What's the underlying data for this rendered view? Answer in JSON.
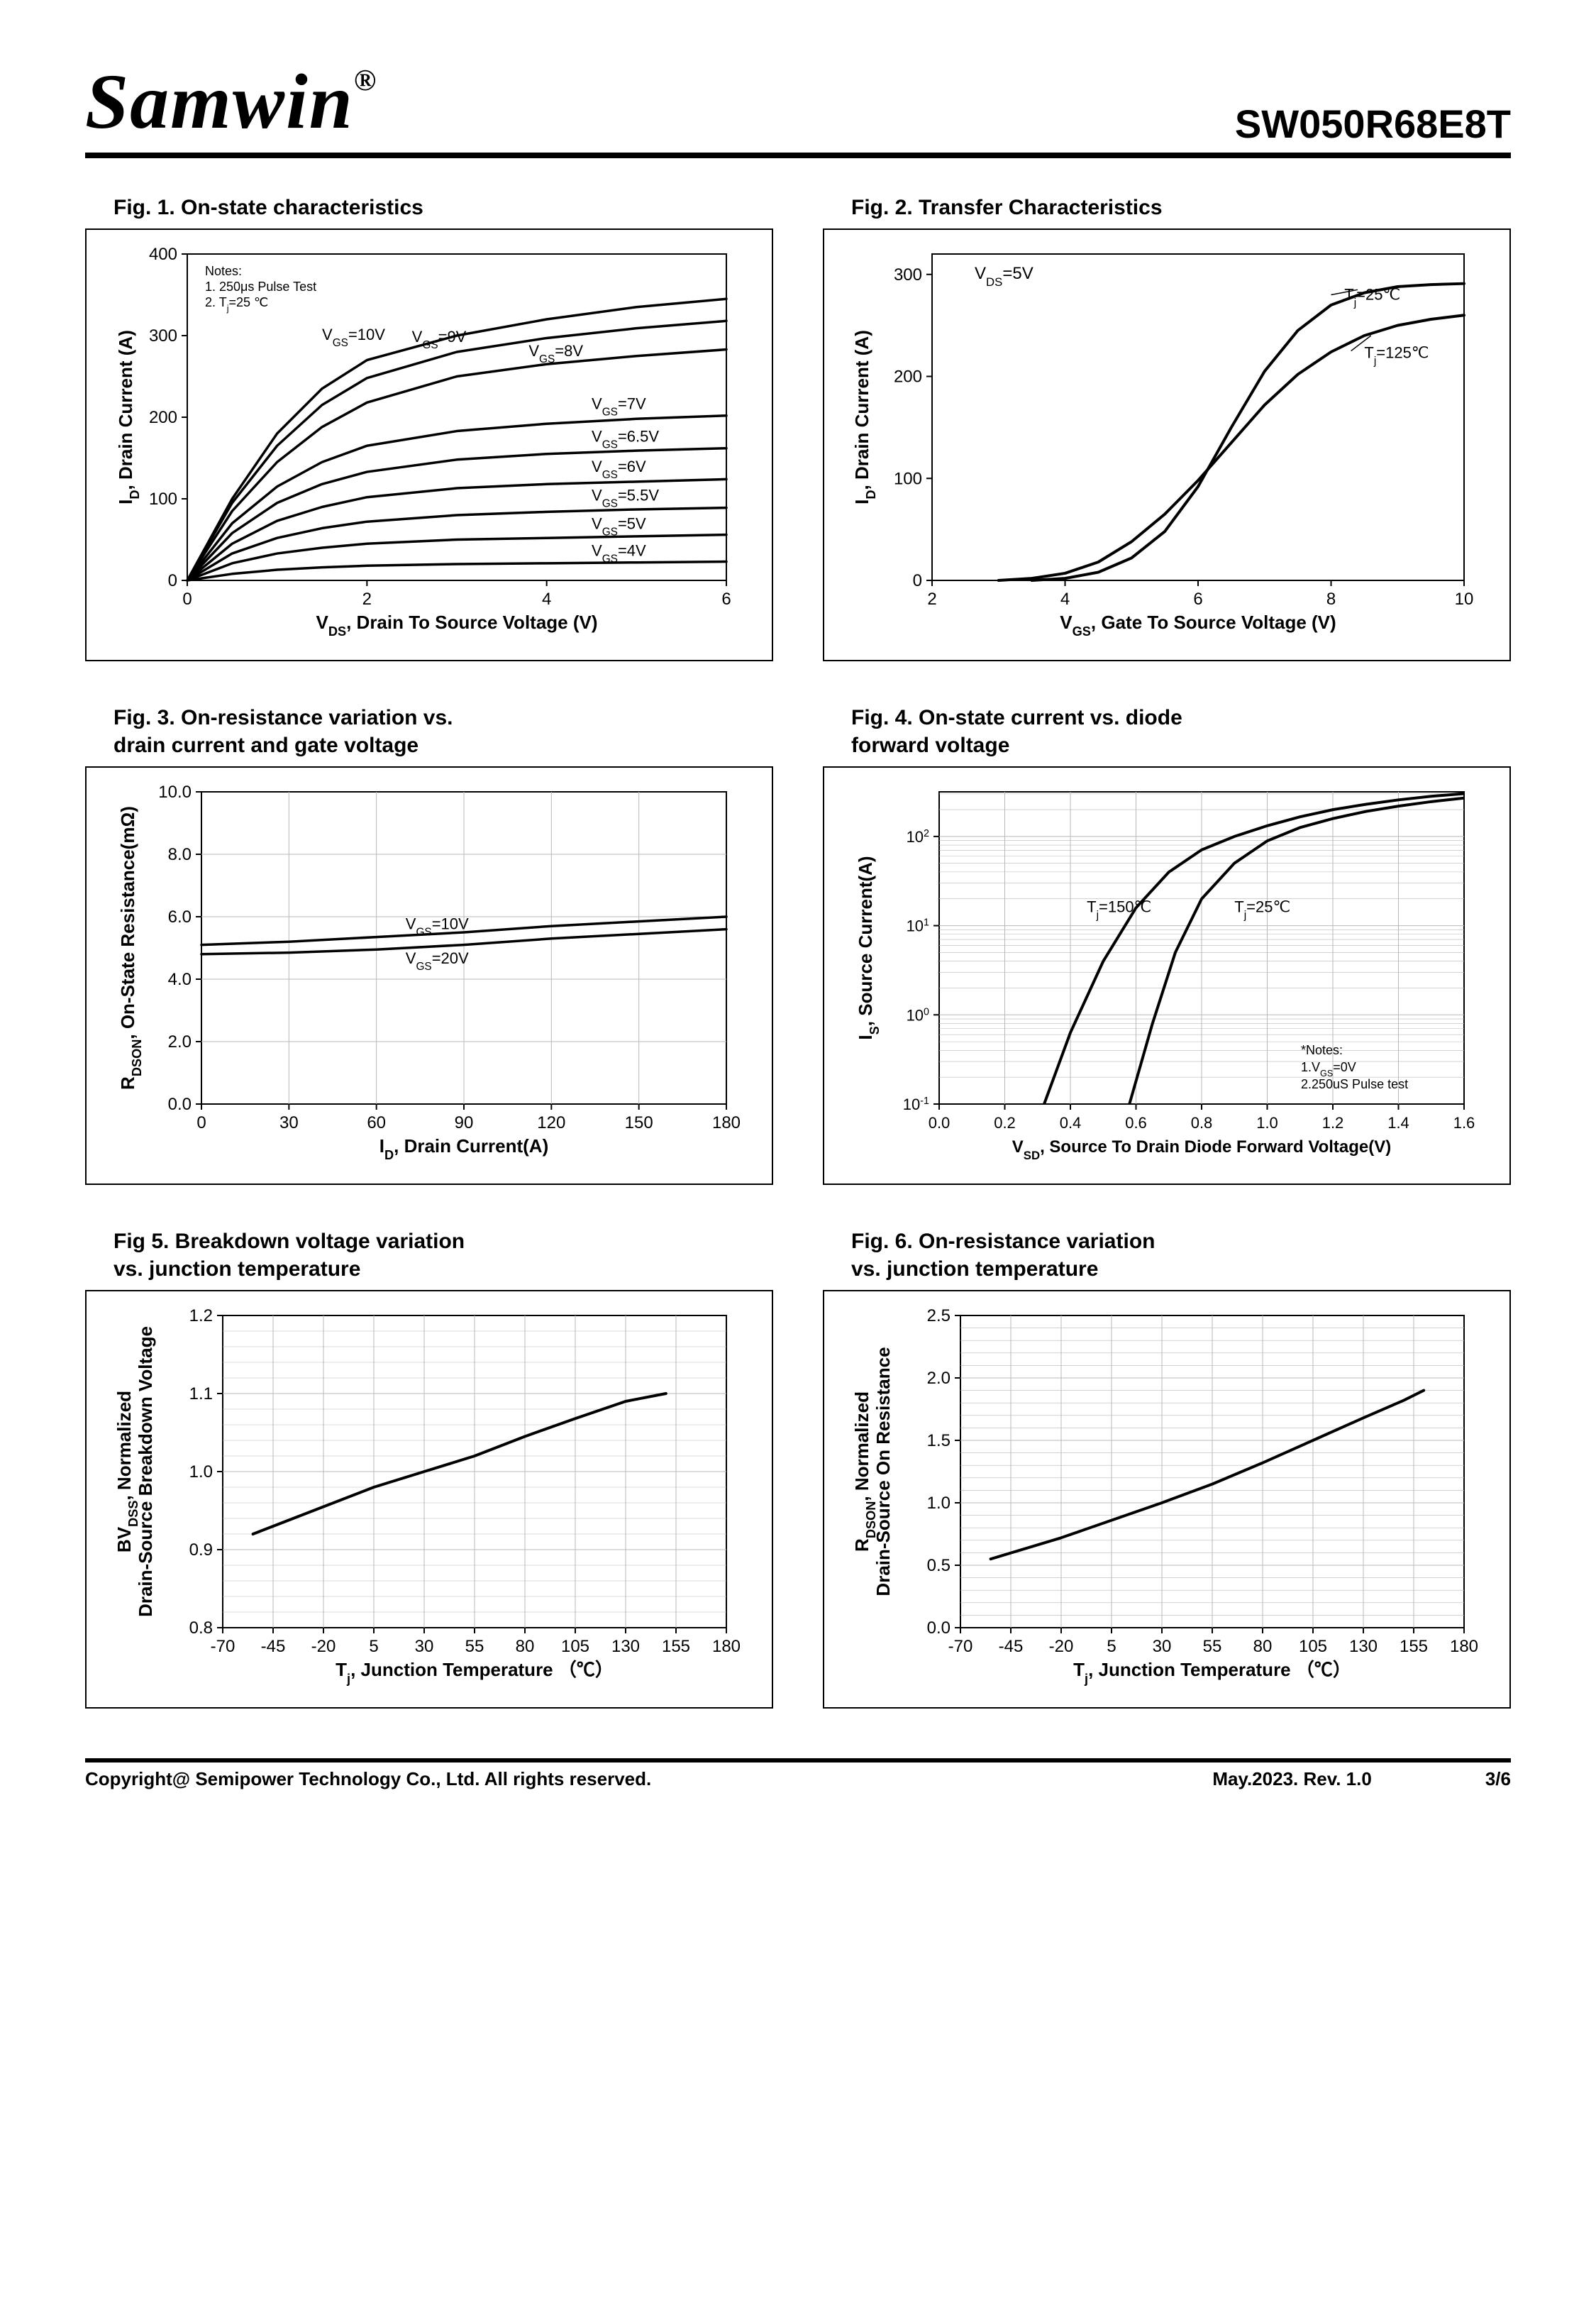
{
  "header": {
    "brand": "Samwin",
    "reg": "®",
    "part": "SW050R68E8T"
  },
  "footer": {
    "copyright": "Copyright@ Semipower Technology Co., Ltd. All rights reserved.",
    "date": "May.2023. Rev. 1.0",
    "page": "3/6"
  },
  "colors": {
    "line": "#000000",
    "grid": "#b8b8b8",
    "bg": "#ffffff",
    "border": "#000000"
  },
  "fig1": {
    "title": "Fig. 1. On-state characteristics",
    "xlabel": "V_DS, Drain To Source Voltage (V)",
    "ylabel": "I_D, Drain Current (A)",
    "xlim": [
      0,
      6
    ],
    "ylim": [
      0,
      400
    ],
    "xticks": [
      0,
      2,
      4,
      6
    ],
    "yticks": [
      0,
      100,
      200,
      300,
      400
    ],
    "notes": [
      "Notes:",
      "1. 250μs  Pulse Test",
      "2. T_j=25 ℃"
    ],
    "series": [
      {
        "label": "V_GS=10V",
        "color": "#000",
        "data": [
          [
            0,
            0
          ],
          [
            0.5,
            100
          ],
          [
            1,
            180
          ],
          [
            1.5,
            235
          ],
          [
            2,
            270
          ],
          [
            3,
            300
          ],
          [
            4,
            320
          ],
          [
            5,
            335
          ],
          [
            6,
            345
          ]
        ],
        "labelpos": [
          1.5,
          295
        ]
      },
      {
        "label": "V_GS=9V",
        "color": "#000",
        "data": [
          [
            0,
            0
          ],
          [
            0.5,
            95
          ],
          [
            1,
            165
          ],
          [
            1.5,
            215
          ],
          [
            2,
            248
          ],
          [
            3,
            280
          ],
          [
            4,
            297
          ],
          [
            5,
            309
          ],
          [
            6,
            318
          ]
        ],
        "labelpos": [
          2.5,
          292
        ]
      },
      {
        "label": "V_GS=8V",
        "color": "#000",
        "data": [
          [
            0,
            0
          ],
          [
            0.5,
            85
          ],
          [
            1,
            145
          ],
          [
            1.5,
            188
          ],
          [
            2,
            218
          ],
          [
            3,
            250
          ],
          [
            4,
            265
          ],
          [
            5,
            275
          ],
          [
            6,
            283
          ]
        ],
        "labelpos": [
          3.8,
          275
        ]
      },
      {
        "label": "V_GS=7V",
        "color": "#000",
        "data": [
          [
            0,
            0
          ],
          [
            0.5,
            70
          ],
          [
            1,
            115
          ],
          [
            1.5,
            145
          ],
          [
            2,
            165
          ],
          [
            3,
            183
          ],
          [
            4,
            192
          ],
          [
            5,
            198
          ],
          [
            6,
            202
          ]
        ],
        "labelpos": [
          4.5,
          210
        ]
      },
      {
        "label": "V_GS=6.5V",
        "color": "#000",
        "data": [
          [
            0,
            0
          ],
          [
            0.5,
            58
          ],
          [
            1,
            95
          ],
          [
            1.5,
            118
          ],
          [
            2,
            133
          ],
          [
            3,
            148
          ],
          [
            4,
            155
          ],
          [
            5,
            159
          ],
          [
            6,
            162
          ]
        ],
        "labelpos": [
          4.5,
          170
        ]
      },
      {
        "label": "V_GS=6V",
        "color": "#000",
        "data": [
          [
            0,
            0
          ],
          [
            0.5,
            45
          ],
          [
            1,
            73
          ],
          [
            1.5,
            90
          ],
          [
            2,
            102
          ],
          [
            3,
            113
          ],
          [
            4,
            118
          ],
          [
            5,
            121
          ],
          [
            6,
            124
          ]
        ],
        "labelpos": [
          4.5,
          133
        ]
      },
      {
        "label": "V_GS=5.5V",
        "color": "#000",
        "data": [
          [
            0,
            0
          ],
          [
            0.5,
            33
          ],
          [
            1,
            52
          ],
          [
            1.5,
            64
          ],
          [
            2,
            72
          ],
          [
            3,
            80
          ],
          [
            4,
            84
          ],
          [
            5,
            87
          ],
          [
            6,
            89
          ]
        ],
        "labelpos": [
          4.5,
          98
        ]
      },
      {
        "label": "V_GS=5V",
        "color": "#000",
        "data": [
          [
            0,
            0
          ],
          [
            0.5,
            21
          ],
          [
            1,
            33
          ],
          [
            1.5,
            40
          ],
          [
            2,
            45
          ],
          [
            3,
            50
          ],
          [
            4,
            52
          ],
          [
            5,
            54
          ],
          [
            6,
            56
          ]
        ],
        "labelpos": [
          4.5,
          63
        ]
      },
      {
        "label": "V_GS=4V",
        "color": "#000",
        "data": [
          [
            0,
            0
          ],
          [
            0.5,
            8
          ],
          [
            1,
            13
          ],
          [
            1.5,
            16
          ],
          [
            2,
            18
          ],
          [
            3,
            20
          ],
          [
            4,
            21
          ],
          [
            5,
            22
          ],
          [
            6,
            23
          ]
        ],
        "labelpos": [
          4.5,
          30
        ]
      }
    ]
  },
  "fig2": {
    "title": "Fig. 2. Transfer Characteristics",
    "xlabel": "V_GS,  Gate To Source Voltage (V)",
    "ylabel": "I_D,  Drain Current (A)",
    "xlim": [
      2,
      10
    ],
    "ylim": [
      0,
      320
    ],
    "xticks": [
      2,
      4,
      6,
      8,
      10
    ],
    "yticks": [
      0,
      100,
      200,
      300
    ],
    "note": "V_DS=5V",
    "series": [
      {
        "label": "T_j=25℃",
        "color": "#000",
        "data": [
          [
            3.5,
            0
          ],
          [
            4,
            2
          ],
          [
            4.5,
            8
          ],
          [
            5,
            22
          ],
          [
            5.5,
            48
          ],
          [
            6,
            92
          ],
          [
            6.5,
            150
          ],
          [
            7,
            205
          ],
          [
            7.5,
            245
          ],
          [
            8,
            270
          ],
          [
            8.5,
            282
          ],
          [
            9,
            288
          ],
          [
            9.5,
            290
          ],
          [
            10,
            291
          ]
        ],
        "labelpos": [
          8.2,
          275
        ]
      },
      {
        "label": "T_j=125℃",
        "color": "#000",
        "data": [
          [
            3,
            0
          ],
          [
            3.5,
            2
          ],
          [
            4,
            7
          ],
          [
            4.5,
            18
          ],
          [
            5,
            38
          ],
          [
            5.5,
            65
          ],
          [
            6,
            98
          ],
          [
            6.5,
            135
          ],
          [
            7,
            172
          ],
          [
            7.5,
            202
          ],
          [
            8,
            224
          ],
          [
            8.5,
            240
          ],
          [
            9,
            250
          ],
          [
            9.5,
            256
          ],
          [
            10,
            260
          ]
        ],
        "labelpos": [
          8.5,
          218
        ]
      }
    ]
  },
  "fig3": {
    "title": "Fig. 3. On-resistance variation vs.\n            drain current and gate voltage",
    "xlabel": "I_D, Drain Current(A)",
    "ylabel": "R_DSON, On-State Resistance(mΩ)",
    "xlim": [
      0,
      180
    ],
    "ylim": [
      0,
      10
    ],
    "xticks": [
      0,
      30,
      60,
      90,
      120,
      150,
      180
    ],
    "yticks": [
      0.0,
      2.0,
      4.0,
      6.0,
      8.0,
      10.0
    ],
    "series": [
      {
        "label": "V_GS=10V",
        "color": "#000",
        "data": [
          [
            0,
            5.1
          ],
          [
            30,
            5.2
          ],
          [
            60,
            5.35
          ],
          [
            90,
            5.5
          ],
          [
            120,
            5.7
          ],
          [
            150,
            5.85
          ],
          [
            180,
            6.0
          ]
        ],
        "labelpos": [
          70,
          5.6
        ]
      },
      {
        "label": "V_GS=20V",
        "color": "#000",
        "data": [
          [
            0,
            4.8
          ],
          [
            30,
            4.85
          ],
          [
            60,
            4.95
          ],
          [
            90,
            5.1
          ],
          [
            120,
            5.3
          ],
          [
            150,
            5.45
          ],
          [
            180,
            5.6
          ]
        ],
        "labelpos": [
          70,
          4.5
        ]
      }
    ]
  },
  "fig4": {
    "title": "Fig. 4. On-state current vs. diode\n            forward voltage",
    "xlabel": "V_SD, Source To Drain Diode Forward Voltage(V)",
    "ylabel": "I_S, Source Current(A)",
    "xlim": [
      0,
      1.6
    ],
    "ylim_log": [
      -1,
      2.5
    ],
    "xticks": [
      0,
      0.2,
      0.4,
      0.6,
      0.8,
      1.0,
      1.2,
      1.4,
      1.6
    ],
    "yticks_log": [
      -1,
      0,
      1,
      2
    ],
    "notes": [
      "*Notes:",
      "1.V_GS=0V",
      "2.250uS Pulse test"
    ],
    "series": [
      {
        "label": "T_j=150℃",
        "color": "#000",
        "data": [
          [
            0.32,
            -1
          ],
          [
            0.4,
            -0.2
          ],
          [
            0.5,
            0.6
          ],
          [
            0.6,
            1.2
          ],
          [
            0.7,
            1.6
          ],
          [
            0.8,
            1.85
          ],
          [
            0.9,
            2.0
          ],
          [
            1.0,
            2.12
          ],
          [
            1.1,
            2.22
          ],
          [
            1.2,
            2.3
          ],
          [
            1.3,
            2.36
          ],
          [
            1.4,
            2.41
          ],
          [
            1.5,
            2.45
          ],
          [
            1.6,
            2.48
          ]
        ],
        "labelpos": [
          0.45,
          1.15
        ]
      },
      {
        "label": "T_j=25℃",
        "color": "#000",
        "data": [
          [
            0.58,
            -1
          ],
          [
            0.65,
            -0.1
          ],
          [
            0.72,
            0.7
          ],
          [
            0.8,
            1.3
          ],
          [
            0.9,
            1.7
          ],
          [
            1.0,
            1.95
          ],
          [
            1.1,
            2.1
          ],
          [
            1.2,
            2.2
          ],
          [
            1.3,
            2.28
          ],
          [
            1.4,
            2.34
          ],
          [
            1.5,
            2.39
          ],
          [
            1.6,
            2.43
          ]
        ],
        "labelpos": [
          0.9,
          1.15
        ]
      }
    ]
  },
  "fig5": {
    "title": "Fig 5. Breakdown voltage variation\n            vs. junction temperature",
    "xlabel": "T_j, Junction Temperature （℃）",
    "ylabel": "BV_DSS, Normalized\nDrain-Source Breakdown Voltage",
    "xlim": [
      -70,
      180
    ],
    "ylim": [
      0.8,
      1.2
    ],
    "xticks": [
      -70,
      -45,
      -20,
      5,
      30,
      55,
      80,
      105,
      130,
      155,
      180
    ],
    "yticks": [
      0.8,
      0.9,
      1.0,
      1.1,
      1.2
    ],
    "series": [
      {
        "label": "",
        "color": "#000",
        "data": [
          [
            -55,
            0.92
          ],
          [
            -20,
            0.955
          ],
          [
            5,
            0.98
          ],
          [
            30,
            1.0
          ],
          [
            55,
            1.02
          ],
          [
            80,
            1.045
          ],
          [
            105,
            1.068
          ],
          [
            130,
            1.09
          ],
          [
            150,
            1.1
          ]
        ]
      }
    ]
  },
  "fig6": {
    "title": "Fig. 6. On-resistance variation\n            vs. junction temperature",
    "xlabel": "T_j, Junction Temperature （℃）",
    "ylabel": "R_DSON, Normalized\nDrain-Source On Resistance",
    "xlim": [
      -70,
      180
    ],
    "ylim": [
      0.0,
      2.5
    ],
    "xticks": [
      -70,
      -45,
      -20,
      5,
      30,
      55,
      80,
      105,
      130,
      155,
      180
    ],
    "yticks": [
      0.0,
      0.5,
      1.0,
      1.5,
      2.0,
      2.5
    ],
    "series": [
      {
        "label": "",
        "color": "#000",
        "data": [
          [
            -55,
            0.55
          ],
          [
            -20,
            0.72
          ],
          [
            5,
            0.86
          ],
          [
            30,
            1.0
          ],
          [
            55,
            1.15
          ],
          [
            80,
            1.32
          ],
          [
            105,
            1.5
          ],
          [
            130,
            1.68
          ],
          [
            150,
            1.82
          ],
          [
            160,
            1.9
          ]
        ]
      }
    ]
  }
}
